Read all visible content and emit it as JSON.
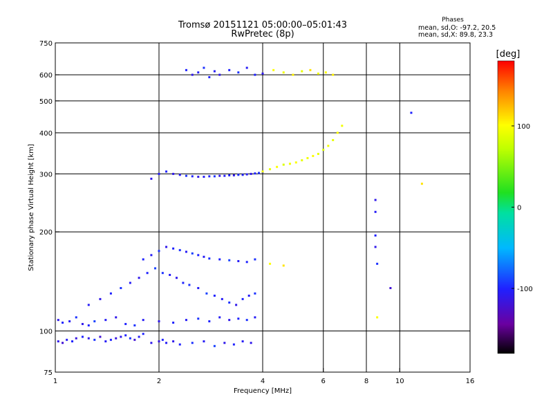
{
  "title_line1": "Tromsø 20151121 05:00:00–05:01:43",
  "title_line2": "RwPretec (8p)",
  "phases": {
    "heading": "Phases",
    "line_o": "mean, sd,O: -97.2, 20.5",
    "line_x": "mean, sd,X:  89.8, 23.3"
  },
  "colorbar": {
    "unit": "[deg]",
    "min": -180,
    "max": 180,
    "ticks": [
      {
        "value": 100,
        "label": "100"
      },
      {
        "value": 0,
        "label": "0"
      },
      {
        "value": -100,
        "label": "-100"
      }
    ]
  },
  "chart_data": {
    "type": "scatter",
    "xlabel": "Frequency [MHz]",
    "ylabel": "Stationary phase Virtual Height [km]",
    "xscale": "log",
    "yscale": "log",
    "xlim": [
      1,
      16
    ],
    "ylim": [
      75,
      750
    ],
    "grid": true,
    "xticks": [
      {
        "value": 1,
        "label": "1",
        "grid": false
      },
      {
        "value": 2,
        "label": "2",
        "grid": true
      },
      {
        "value": 4,
        "label": "4",
        "grid": true
      },
      {
        "value": 6,
        "label": "6",
        "grid": true
      },
      {
        "value": 8,
        "label": "8",
        "grid": true
      },
      {
        "value": 10,
        "label": "10",
        "grid": true
      },
      {
        "value": 16,
        "label": "16",
        "grid": false
      }
    ],
    "yticks": [
      {
        "value": 75,
        "label": "75",
        "grid": false
      },
      {
        "value": 100,
        "label": "100",
        "grid": true
      },
      {
        "value": 200,
        "label": "200",
        "grid": true
      },
      {
        "value": 300,
        "label": "300",
        "grid": true
      },
      {
        "value": 400,
        "label": "400",
        "grid": true
      },
      {
        "value": 500,
        "label": "500",
        "grid": true
      },
      {
        "value": 600,
        "label": "600",
        "grid": true
      },
      {
        "value": 750,
        "label": "750",
        "grid": false
      }
    ],
    "color_axis": "phase [deg]",
    "series": [
      {
        "x": [
          1.02,
          1.05,
          1.08,
          1.12,
          1.15,
          1.2,
          1.25,
          1.3,
          1.35,
          1.4,
          1.45,
          1.5,
          1.55,
          1.6,
          1.65,
          1.7,
          1.75,
          1.8,
          1.9,
          2.0,
          2.05,
          2.1,
          2.2,
          2.3,
          2.5,
          2.7,
          2.9,
          3.1,
          3.3,
          3.5,
          3.7
        ],
        "y": [
          93,
          92,
          94,
          93,
          95,
          96,
          95,
          94,
          96,
          93,
          94,
          95,
          96,
          97,
          95,
          94,
          96,
          98,
          92,
          93,
          94,
          92,
          93,
          91,
          92,
          93,
          90,
          92,
          91,
          93,
          92
        ],
        "phase": [
          -110,
          -120,
          -105,
          -100,
          -115,
          -100,
          -110,
          -95,
          -120,
          -105,
          -100,
          -115,
          -110,
          -100,
          -95,
          -120,
          -105,
          -100,
          -110,
          -115,
          -100,
          -105,
          -110,
          -100,
          -95,
          -105,
          -90,
          -110,
          -100,
          -105,
          -110
        ]
      },
      {
        "x": [
          1.02,
          1.05,
          1.1,
          1.15,
          1.2,
          1.25,
          1.3,
          1.4,
          1.5,
          1.6,
          1.7,
          1.8,
          2.0,
          2.2,
          2.4,
          2.6,
          2.8,
          3.0,
          3.2,
          3.4,
          3.6,
          3.8
        ],
        "y": [
          108,
          106,
          107,
          110,
          105,
          104,
          107,
          108,
          110,
          105,
          104,
          108,
          107,
          106,
          108,
          109,
          107,
          110,
          108,
          109,
          108,
          110
        ],
        "phase": [
          -110,
          -100,
          -105,
          -95,
          -110,
          -100,
          -90,
          -105,
          -110,
          -100,
          -95,
          -105,
          -110,
          -100,
          -105,
          -95,
          -100,
          -105,
          -110,
          -100,
          -95,
          -105
        ]
      },
      {
        "x": [
          1.25,
          1.35,
          1.45,
          1.55,
          1.65,
          1.75,
          1.85,
          1.95,
          2.05,
          2.15,
          2.25,
          2.35,
          2.45,
          2.6,
          2.75,
          2.9,
          3.05,
          3.2,
          3.35,
          3.5,
          3.65,
          3.8
        ],
        "y": [
          120,
          125,
          130,
          135,
          140,
          145,
          150,
          155,
          150,
          148,
          145,
          140,
          138,
          135,
          130,
          128,
          125,
          122,
          120,
          125,
          128,
          130
        ],
        "phase": [
          -105,
          -110,
          -100,
          -95,
          -105,
          -110,
          -100,
          -90,
          -95,
          -105,
          -110,
          -100,
          -95,
          -105,
          -90,
          -100,
          -105,
          -95,
          -110,
          -100,
          -105,
          -95
        ]
      },
      {
        "x": [
          1.8,
          1.9,
          2.0,
          2.1,
          2.2,
          2.3,
          2.4,
          2.5,
          2.6,
          2.7,
          2.8,
          3.0,
          3.2,
          3.4,
          3.6,
          3.8,
          4.2,
          4.6
        ],
        "y": [
          165,
          170,
          175,
          180,
          178,
          176,
          174,
          172,
          170,
          168,
          166,
          165,
          164,
          163,
          162,
          165,
          160,
          158
        ],
        "phase": [
          -100,
          -105,
          -95,
          -110,
          -100,
          -95,
          -105,
          -90,
          -100,
          -105,
          -95,
          -100,
          -90,
          -105,
          -100,
          -95,
          100,
          110
        ]
      },
      {
        "x": [
          1.9,
          2.0,
          2.1,
          2.2,
          2.3,
          2.4,
          2.5,
          2.6,
          2.7,
          2.8,
          2.9,
          3.0,
          3.1,
          3.2,
          3.3,
          3.4,
          3.5,
          3.6,
          3.7,
          3.8,
          3.9,
          4.0
        ],
        "y": [
          290,
          300,
          305,
          300,
          298,
          296,
          295,
          294,
          294,
          295,
          295,
          296,
          296,
          297,
          297,
          298,
          298,
          299,
          300,
          301,
          302,
          304
        ],
        "phase": [
          -110,
          -105,
          -100,
          -110,
          -105,
          -95,
          -100,
          -110,
          -105,
          -100,
          -95,
          -110,
          -105,
          -100,
          -110,
          -95,
          -100,
          -105,
          -110,
          -100,
          -95,
          -105
        ]
      },
      {
        "x": [
          4.0,
          4.2,
          4.4,
          4.6,
          4.8,
          5.0,
          5.2,
          5.4,
          5.6,
          5.8,
          6.0,
          6.2,
          6.4,
          6.6,
          6.8
        ],
        "y": [
          305,
          310,
          315,
          320,
          322,
          325,
          330,
          335,
          340,
          345,
          355,
          365,
          380,
          400,
          420
        ],
        "phase": [
          95,
          90,
          100,
          85,
          95,
          100,
          90,
          95,
          100,
          90,
          85,
          95,
          90,
          100,
          95
        ]
      },
      {
        "x": [
          2.4,
          2.5,
          2.6,
          2.7,
          2.8,
          2.9,
          3.0,
          3.2,
          3.4,
          3.6,
          3.8,
          4.0,
          4.3,
          4.6,
          4.9,
          5.2,
          5.5,
          5.8,
          6.1,
          6.4
        ],
        "y": [
          620,
          600,
          610,
          630,
          590,
          615,
          600,
          620,
          610,
          630,
          600,
          605,
          620,
          610,
          600,
          615,
          620,
          605,
          610,
          600
        ],
        "phase": [
          -100,
          -110,
          -105,
          -95,
          -100,
          -105,
          -110,
          -100,
          -95,
          -105,
          -100,
          -110,
          100,
          95,
          105,
          90,
          110,
          95,
          100,
          105
        ]
      },
      {
        "x": [
          8.5,
          8.5,
          8.5,
          8.5,
          8.6,
          8.6,
          9.4,
          10.8,
          11.6
        ],
        "y": [
          250,
          230,
          195,
          180,
          160,
          110,
          135,
          460,
          280
        ],
        "phase": [
          -110,
          -105,
          -100,
          -110,
          -95,
          100,
          -120,
          -100,
          110
        ]
      }
    ]
  }
}
